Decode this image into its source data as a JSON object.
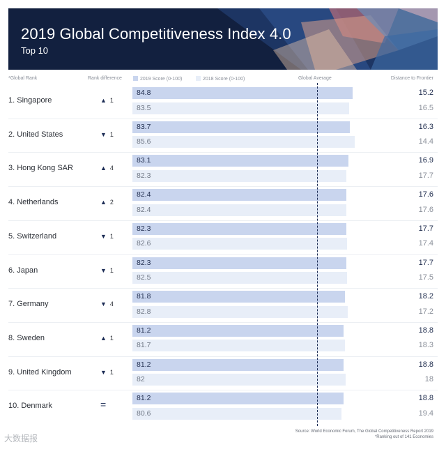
{
  "header": {
    "title": "2019 Global Competitiveness Index 4.0",
    "subtitle": "Top 10"
  },
  "columns": {
    "global_rank": "*Global Rank",
    "rank_difference": "Rank difference",
    "score_2019": "2019 Score (0-100)",
    "score_2018": "2018 Score (0-100)",
    "global_average": "Global Average",
    "distance": "Distance to Frontier"
  },
  "colors": {
    "header_bg": "#12203f",
    "bar_2019": "#c9d5ee",
    "bar_2018": "#e8eef8",
    "accent": "#1c2c55"
  },
  "source": {
    "line1": "Source:  World Economic Forum, The Global Competitiveness Report 2019",
    "line2": "*Ranking out of 141 Economies"
  },
  "watermark": "大数据报",
  "chart_data": {
    "type": "bar",
    "orientation": "horizontal",
    "title": "2019 Global Competitiveness Index 4.0",
    "subtitle": "Top 10",
    "xlim": [
      0,
      100
    ],
    "categories": [
      "1. Singapore",
      "2. United States",
      "3. Hong Kong SAR",
      "4. Netherlands",
      "5. Switzerland",
      "6. Japan",
      "7. Germany",
      "8. Sweden",
      "9. United Kingdom",
      "10. Denmark"
    ],
    "rank_difference": [
      {
        "dir": "up",
        "symbol": "▲",
        "value": "1"
      },
      {
        "dir": "down",
        "symbol": "▼",
        "value": "1"
      },
      {
        "dir": "up",
        "symbol": "▲",
        "value": "4"
      },
      {
        "dir": "up",
        "symbol": "▲",
        "value": "2"
      },
      {
        "dir": "down",
        "symbol": "▼",
        "value": "1"
      },
      {
        "dir": "down",
        "symbol": "▼",
        "value": "1"
      },
      {
        "dir": "down",
        "symbol": "▼",
        "value": "4"
      },
      {
        "dir": "up",
        "symbol": "▲",
        "value": "1"
      },
      {
        "dir": "down",
        "symbol": "▼",
        "value": "1"
      },
      {
        "dir": "same",
        "symbol": "=",
        "value": ""
      }
    ],
    "series": [
      {
        "name": "2019 Score (0-100)",
        "values": [
          84.8,
          83.7,
          83.1,
          82.4,
          82.3,
          82.3,
          81.8,
          81.2,
          81.2,
          81.2
        ],
        "labels": [
          "84.8",
          "83.7",
          "83.1",
          "82.4",
          "82.3",
          "82.3",
          "81.8",
          "81.2",
          "81.2",
          "81.2"
        ]
      },
      {
        "name": "2018 Score (0-100)",
        "values": [
          83.5,
          85.6,
          82.3,
          82.4,
          82.6,
          82.5,
          82.8,
          81.7,
          82,
          80.6
        ],
        "labels": [
          "83.5",
          "85.6",
          "82.3",
          "82.4",
          "82.6",
          "82.5",
          "82.8",
          "81.7",
          "82",
          "80.6"
        ]
      }
    ],
    "distance_to_frontier": {
      "2019": [
        "15.2",
        "16.3",
        "16.9",
        "17.6",
        "17.7",
        "17.7",
        "18.2",
        "18.8",
        "18.8",
        "18.8"
      ],
      "2018": [
        "16.5",
        "14.4",
        "17.7",
        "17.6",
        "17.4",
        "17.5",
        "17.2",
        "18.3",
        "18",
        "19.4"
      ]
    },
    "global_average": "dashed vertical line",
    "legend": "top"
  }
}
